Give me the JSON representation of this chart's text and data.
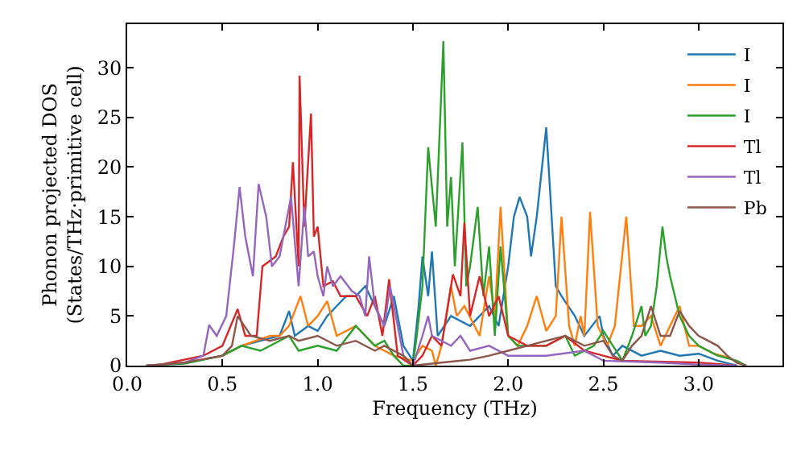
{
  "chart_data": {
    "type": "line",
    "xlabel": "Frequency (THz)",
    "ylabel": "Phonon projected DOS\n(States/THz·primitive cell)",
    "xlim": [
      0,
      3.44
    ],
    "ylim": [
      0,
      34.4
    ],
    "xticks": [
      {
        "value": 0,
        "label": "0.0"
      },
      {
        "value": 0.5,
        "label": "0.5"
      },
      {
        "value": 1,
        "label": "1.0"
      },
      {
        "value": 1.5,
        "label": "1.5"
      },
      {
        "value": 2,
        "label": "2.0"
      },
      {
        "value": 2.5,
        "label": "2.5"
      },
      {
        "value": 3,
        "label": "3.0"
      }
    ],
    "yticks": [
      0,
      5,
      10,
      15,
      20,
      25,
      30
    ],
    "legend": "top right",
    "marker": "none",
    "line_style": "solid",
    "series": [
      {
        "name": "I",
        "color": "#1f77b4",
        "x": [
          0.42,
          0.5,
          0.6,
          0.7,
          0.8,
          0.85,
          0.88,
          0.95,
          1.0,
          1.05,
          1.1,
          1.15,
          1.2,
          1.25,
          1.3,
          1.35,
          1.4,
          1.45,
          1.5,
          1.53,
          1.55,
          1.58,
          1.6,
          1.63,
          1.7,
          1.8,
          1.85,
          1.9,
          1.95,
          2.0,
          2.03,
          2.06,
          2.1,
          2.12,
          2.15,
          2.2,
          2.25,
          2.28,
          2.35,
          2.4,
          2.48,
          2.5,
          2.55,
          2.6,
          2.7,
          2.8,
          2.9,
          3.0,
          3.1,
          3.2
        ],
        "values": [
          0.7,
          1,
          2,
          2.5,
          3,
          5.5,
          3,
          4,
          3.5,
          5,
          6,
          7,
          7,
          8,
          6,
          4,
          7,
          2,
          0.5,
          6,
          11,
          7,
          11.5,
          3,
          5,
          4,
          5,
          6,
          4,
          10,
          15,
          17,
          15,
          11,
          15,
          24,
          8,
          7,
          5,
          3,
          5,
          3,
          1,
          2,
          1,
          1.5,
          1,
          1.2,
          0.5,
          0
        ]
      },
      {
        "name": "I",
        "color": "#ff7f0e",
        "x": [
          0.46,
          0.5,
          0.6,
          0.75,
          0.8,
          0.85,
          0.91,
          0.95,
          1.0,
          1.05,
          1.1,
          1.2,
          1.3,
          1.4,
          1.5,
          1.55,
          1.6,
          1.62,
          1.65,
          1.7,
          1.73,
          1.77,
          1.85,
          1.9,
          1.93,
          1.96,
          2.0,
          2.05,
          2.1,
          2.15,
          2.2,
          2.25,
          2.28,
          2.32,
          2.35,
          2.38,
          2.4,
          2.43,
          2.47,
          2.52,
          2.56,
          2.62,
          2.66,
          2.7,
          2.75,
          2.8,
          2.85,
          2.9,
          2.95,
          3.0,
          3.08,
          3.16
        ],
        "values": [
          0.8,
          1,
          2,
          3,
          3,
          4,
          7,
          4,
          5,
          6.5,
          3,
          4,
          2,
          1,
          0.5,
          2,
          1.5,
          0,
          2,
          8,
          5,
          6,
          3,
          9,
          5,
          16,
          3,
          2,
          4,
          7,
          3.5,
          5,
          15,
          4,
          2,
          5,
          3,
          15.5,
          4,
          2,
          4,
          15,
          4,
          4,
          5,
          2,
          4,
          6,
          2,
          2,
          1.2,
          0.8
        ]
      },
      {
        "name": "I",
        "color": "#2ca02c",
        "x": [
          0.1,
          0.3,
          0.5,
          0.6,
          0.7,
          0.85,
          0.9,
          1.0,
          1.1,
          1.2,
          1.3,
          1.35,
          1.4,
          1.45,
          1.5,
          1.52,
          1.55,
          1.58,
          1.62,
          1.66,
          1.68,
          1.7,
          1.72,
          1.76,
          1.78,
          1.8,
          1.84,
          1.87,
          1.9,
          1.93,
          1.96,
          2.0,
          2.05,
          2.2,
          2.3,
          2.35,
          2.4,
          2.45,
          2.5,
          2.55,
          2.6,
          2.65,
          2.7,
          2.72,
          2.75,
          2.78,
          2.81,
          2.83,
          2.85,
          2.9,
          2.95,
          3.0,
          3.1,
          3.2,
          3.25
        ],
        "values": [
          0,
          0.2,
          1,
          2,
          1.5,
          3,
          1.5,
          2,
          1.5,
          4,
          2,
          2.5,
          1,
          0,
          0,
          3,
          8,
          22,
          14,
          32.7,
          14,
          19,
          10,
          22.5,
          8,
          10,
          16,
          7,
          12,
          3,
          12,
          3,
          2,
          2,
          3,
          1,
          1.5,
          2,
          3.5,
          2,
          0.5,
          3,
          6,
          3,
          4,
          8,
          14,
          11,
          9,
          5,
          3,
          2,
          1,
          0.5,
          0
        ]
      },
      {
        "name": "Tl",
        "color": "#d62728",
        "x": [
          0.15,
          0.4,
          0.5,
          0.58,
          0.62,
          0.68,
          0.71,
          0.78,
          0.82,
          0.85,
          0.87,
          0.88,
          0.9,
          0.905,
          0.93,
          0.965,
          0.98,
          1.0,
          1.03,
          1.08,
          1.12,
          1.2,
          1.26,
          1.3,
          1.34,
          1.375,
          1.42,
          1.5,
          1.55,
          1.6,
          1.65,
          1.71,
          1.75,
          1.77,
          1.8,
          1.85,
          1.9,
          1.95,
          2.0,
          2.1,
          2.2,
          2.3,
          2.4,
          2.5,
          2.6,
          3.0,
          3.2
        ],
        "values": [
          0,
          1,
          2,
          5.7,
          3,
          3,
          10,
          11,
          13,
          14,
          20.5,
          17,
          10,
          29.2,
          14,
          25.4,
          13,
          14,
          8,
          8.5,
          7,
          7,
          5,
          7,
          3,
          8.7,
          1,
          0,
          1,
          3,
          2,
          9.2,
          7,
          14.4,
          5,
          9,
          5,
          7,
          3,
          2,
          2,
          3,
          1.5,
          1,
          0.5,
          0.3,
          0
        ]
      },
      {
        "name": "Tl",
        "color": "#9467bd",
        "x": [
          0.1,
          0.3,
          0.4,
          0.43,
          0.47,
          0.52,
          0.56,
          0.59,
          0.62,
          0.66,
          0.69,
          0.73,
          0.76,
          0.8,
          0.83,
          0.86,
          0.9,
          0.93,
          0.95,
          0.98,
          1.0,
          1.03,
          1.05,
          1.08,
          1.12,
          1.18,
          1.22,
          1.25,
          1.27,
          1.3,
          1.35,
          1.38,
          1.45,
          1.5,
          1.55,
          1.58,
          1.6,
          1.7,
          1.75,
          1.8,
          1.9,
          2.0,
          2.2,
          2.4,
          2.5,
          2.8,
          3.0,
          3.2
        ],
        "values": [
          0,
          0.3,
          1,
          4.1,
          3,
          5,
          12,
          18,
          13,
          9,
          18.3,
          15,
          10,
          11,
          14,
          17,
          8,
          16,
          11,
          11.5,
          9,
          7,
          10,
          8,
          9,
          7.5,
          7,
          5,
          11,
          6,
          4,
          8,
          1,
          0,
          3,
          5,
          3,
          2,
          3,
          1.5,
          2,
          1,
          1,
          1.5,
          0.5,
          0.3,
          0.1,
          0
        ]
      },
      {
        "name": "Pb",
        "color": "#8c564b",
        "x": [
          0.1,
          0.3,
          0.5,
          0.55,
          0.58,
          0.65,
          0.75,
          0.85,
          0.9,
          1.0,
          1.1,
          1.2,
          1.3,
          1.35,
          1.45,
          1.5,
          1.6,
          1.7,
          1.8,
          1.9,
          2.0,
          2.1,
          2.2,
          2.3,
          2.4,
          2.5,
          2.55,
          2.6,
          2.65,
          2.7,
          2.75,
          2.8,
          2.85,
          2.9,
          2.95,
          3.0,
          3.05,
          3.1,
          3.15,
          3.2,
          3.25
        ],
        "values": [
          0,
          0.3,
          1,
          2,
          5,
          3,
          2.5,
          3,
          2.5,
          3,
          2,
          2.5,
          1.5,
          2,
          1,
          0,
          0.2,
          0.4,
          0.6,
          1,
          1.5,
          2,
          2.5,
          3,
          2,
          2.5,
          1,
          0.5,
          2,
          3,
          6,
          3,
          3,
          5.5,
          4,
          3,
          2.5,
          2,
          1,
          0.3,
          0
        ]
      }
    ]
  }
}
